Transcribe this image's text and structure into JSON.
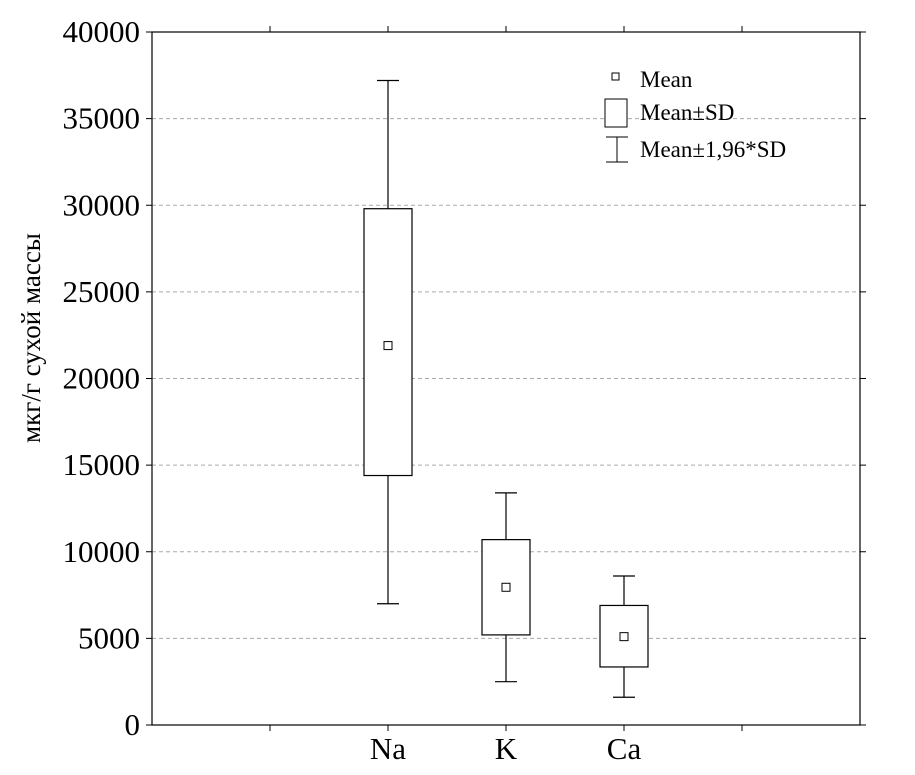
{
  "chart_data": {
    "type": "box",
    "title": "",
    "xlabel": "",
    "ylabel": "мкг/г сухой массы",
    "ylim": [
      0,
      40000
    ],
    "yticks": [
      "0",
      "5000",
      "10000",
      "15000",
      "20000",
      "25000",
      "30000",
      "35000",
      "40000"
    ],
    "ytick_values": [
      0,
      5000,
      10000,
      15000,
      20000,
      25000,
      30000,
      35000,
      40000
    ],
    "grid": true,
    "categories": [
      "Na",
      "K",
      "Ca"
    ],
    "series": [
      {
        "name": "Na",
        "mean": 21900,
        "sd_low": 14400,
        "sd_high": 29800,
        "ci_low": 7000,
        "ci_high": 37200
      },
      {
        "name": "K",
        "mean": 7950,
        "sd_low": 5200,
        "sd_high": 10700,
        "ci_low": 2500,
        "ci_high": 13400
      },
      {
        "name": "Ca",
        "mean": 5100,
        "sd_low": 3350,
        "sd_high": 6900,
        "ci_low": 1600,
        "ci_high": 8600
      }
    ],
    "legend": {
      "placement": "top-right",
      "entries": [
        "Mean",
        "Mean±SD",
        "Mean±1,96*SD"
      ]
    }
  }
}
